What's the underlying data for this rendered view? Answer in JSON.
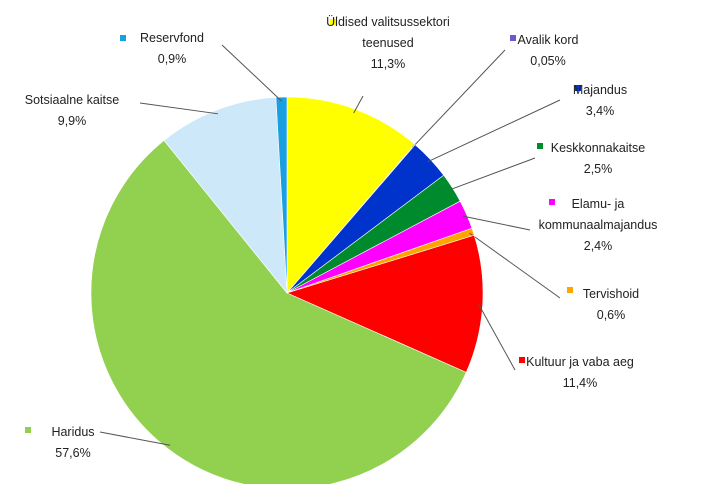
{
  "chart_data": {
    "type": "pie",
    "categories": [
      "Üldised valitsussektori teenused",
      "Avalik kord",
      "Majandus",
      "Keskkonnakaitse",
      "Elamu- ja kommunaalmajandus",
      "Tervishoid",
      "Kultuur ja vaba aeg",
      "Haridus",
      "Sotsiaalne kaitse",
      "Reservfond"
    ],
    "values": [
      11.3,
      0.05,
      3.4,
      2.5,
      2.4,
      0.6,
      11.4,
      57.6,
      9.9,
      0.9
    ],
    "value_labels": [
      "11,3%",
      "0,05%",
      "3,4%",
      "2,5%",
      "2,4%",
      "0,6%",
      "11,4%",
      "57,6%",
      "9,9%",
      "0,9%"
    ],
    "colors": [
      "#ffff00",
      "#6a5acd",
      "#0033cc",
      "#008a2e",
      "#ff00ff",
      "#ffa500",
      "#ff0000",
      "#92d050",
      "#cde8f8",
      "#1aa0e0"
    ]
  }
}
